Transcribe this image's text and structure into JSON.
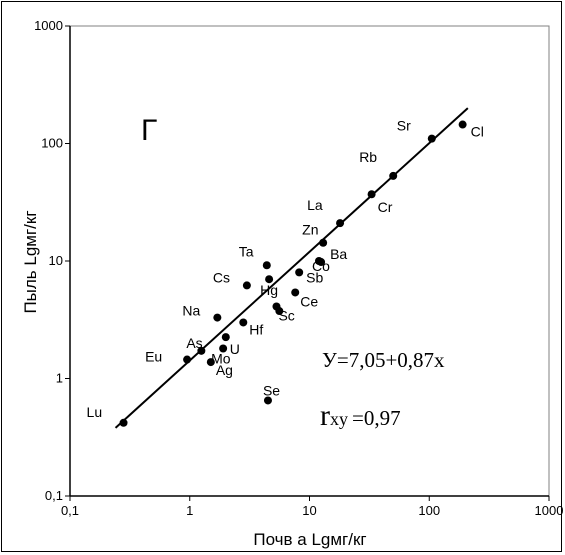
{
  "chart_data": {
    "type": "scatter",
    "panel_label": "Г",
    "xlabel": "Почв а Lgмг/кг",
    "ylabel": "Пыль Lgмг/кг",
    "x_scale": "log",
    "y_scale": "log",
    "xlim": [
      0.1,
      1000
    ],
    "ylim": [
      0.1,
      1000
    ],
    "x_ticks": [
      "0,1",
      "1",
      "10",
      "100",
      "1000"
    ],
    "y_ticks": [
      "0,1",
      "1",
      "10",
      "100",
      "1000"
    ],
    "grid": false,
    "points": [
      {
        "label": "Lu",
        "x": 0.28,
        "y": 0.42
      },
      {
        "label": "Eu",
        "x": 0.95,
        "y": 1.45
      },
      {
        "label": "As",
        "x": 1.25,
        "y": 1.72
      },
      {
        "label": "Ag",
        "x": 1.5,
        "y": 1.38
      },
      {
        "label": "Mo",
        "x": 1.9,
        "y": 1.8
      },
      {
        "label": "U",
        "x": 2.0,
        "y": 2.25
      },
      {
        "label": "Na",
        "x": 1.7,
        "y": 3.3
      },
      {
        "label": "Hf",
        "x": 2.8,
        "y": 3.0
      },
      {
        "label": "Cs",
        "x": 3.0,
        "y": 6.2
      },
      {
        "label": "Ta",
        "x": 4.4,
        "y": 9.2
      },
      {
        "label": "Hg",
        "x": 4.6,
        "y": 7.0
      },
      {
        "label": "Se",
        "x": 4.5,
        "y": 0.65
      },
      {
        "label": "Sc",
        "x": 5.3,
        "y": 4.1
      },
      {
        "label": "",
        "x": 5.6,
        "y": 3.75
      },
      {
        "label": "Ce",
        "x": 7.6,
        "y": 5.4
      },
      {
        "label": "Sb",
        "x": 8.2,
        "y": 8.0
      },
      {
        "label": "Co",
        "x": 12.0,
        "y": 10.0
      },
      {
        "label": "Zn",
        "x": 13.0,
        "y": 14.3
      },
      {
        "label": "Ba",
        "x": 12.5,
        "y": 9.8
      },
      {
        "label": "La",
        "x": 18.0,
        "y": 21.0
      },
      {
        "label": "Cr",
        "x": 33.0,
        "y": 37.0
      },
      {
        "label": "Rb",
        "x": 50.0,
        "y": 53.0
      },
      {
        "label": "Sr",
        "x": 105.0,
        "y": 110.0
      },
      {
        "label": "Cl",
        "x": 190.0,
        "y": 145.0
      }
    ],
    "trendline": {
      "equation": "У=7,05+0,87x",
      "r_main": "r",
      "r_sub": "xy",
      "r_value": "=0,97",
      "x_range": [
        0.24,
        210
      ]
    }
  }
}
